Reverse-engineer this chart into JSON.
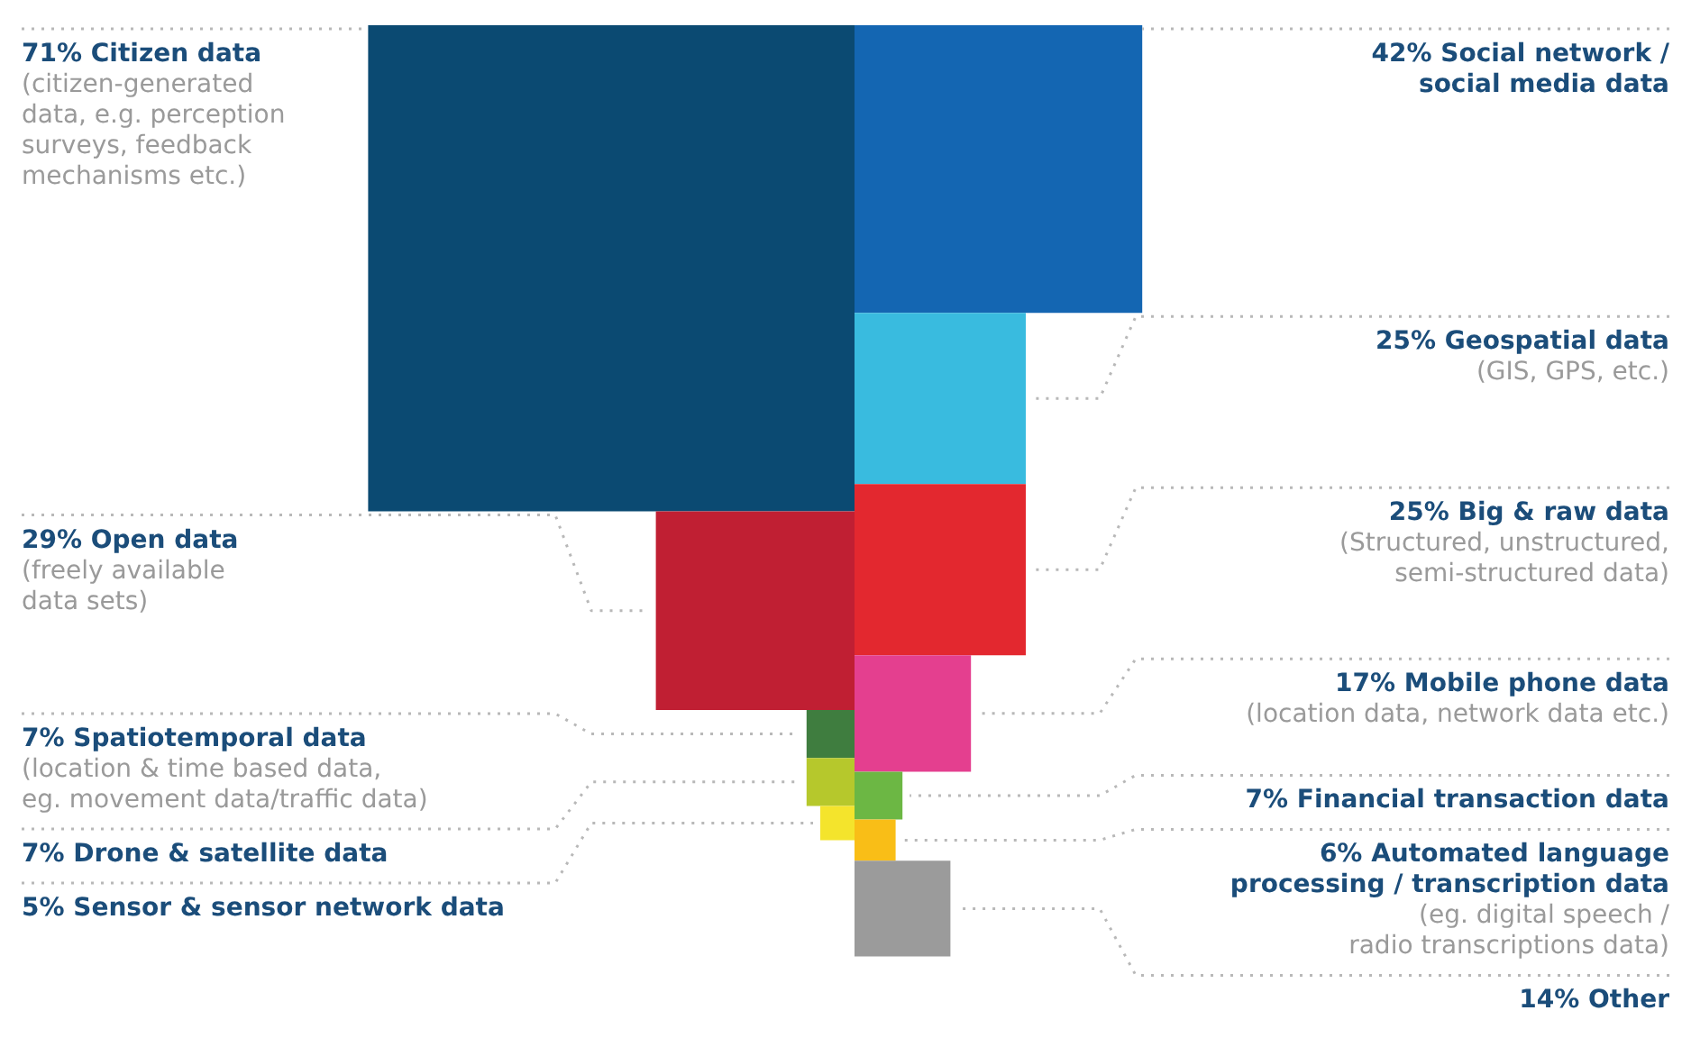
{
  "chart_data": {
    "type": "other",
    "categories": [
      "Citizen data",
      "Open data",
      "Spatiotemporal data",
      "Drone & satellite data",
      "Sensor & sensor network data",
      "Social network /\nsocial media data",
      "Geospatial data",
      "Big & raw data",
      "Mobile phone data",
      "Financial transaction data",
      "Automated language\nprocessing / transcription data",
      "Other"
    ],
    "series": [
      {
        "values": [
          71,
          29,
          7,
          7,
          5,
          null,
          null,
          null,
          null,
          null,
          null,
          null
        ],
        "colors": [
          "#0b4a72",
          "#c01f33",
          "#3f7d3f",
          "#b6c82c",
          "#f4e42c",
          null,
          null,
          null,
          null,
          null,
          null,
          null
        ],
        "value_labels": [
          "71%",
          "29%",
          "7%",
          "7%",
          "5%",
          null,
          null,
          null,
          null,
          null,
          null,
          null
        ]
      },
      {
        "values": [
          null,
          null,
          null,
          null,
          null,
          42,
          25,
          25,
          17,
          7,
          6,
          14
        ],
        "colors": [
          null,
          null,
          null,
          null,
          null,
          "#1466b2",
          "#39bbdf",
          "#e3282f",
          "#e43f8f",
          "#6cb744",
          "#f9be17",
          "#9b9b9b"
        ],
        "value_labels": [
          null,
          null,
          null,
          null,
          null,
          "42%",
          "25%",
          "25%",
          "17%",
          "7%",
          "6%",
          "14%"
        ]
      }
    ],
    "annotations": [
      "(citizen-generated\ndata, e.g. perception\nsurveys, feedback\nmechanisms etc.)",
      "(freely available\ndata sets)",
      "(location & time based data,\neg. movement data/traffic data)",
      null,
      null,
      null,
      "(GIS, GPS, etc.)",
      "(Structured, unstructured,\nsemi-structured data)",
      "(location data, network data etc.)",
      null,
      "(eg. digital speech /\nradio transcriptions data)",
      null
    ]
  }
}
